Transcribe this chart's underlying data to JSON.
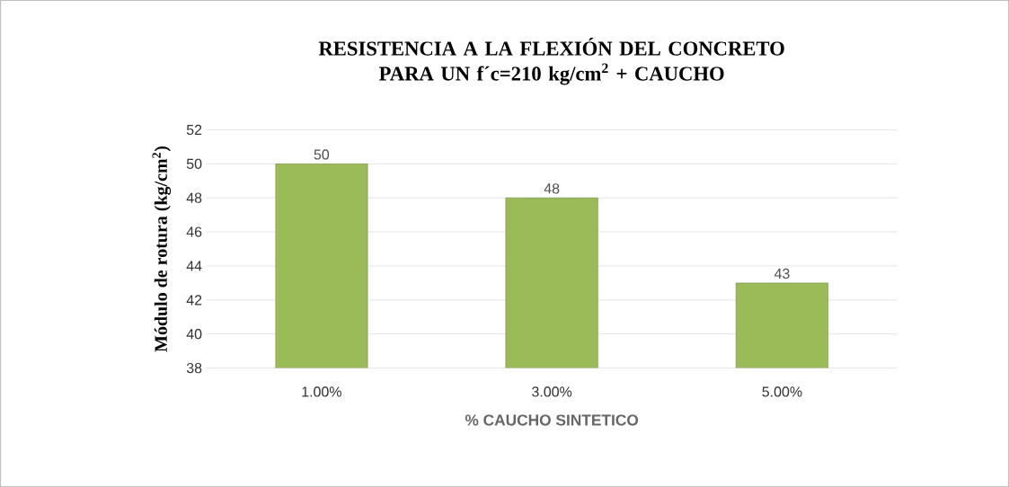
{
  "chart_data": {
    "type": "bar",
    "title": "RESISTENCIA A LA FLEXIÓN DEL CONCRETO  PARA UN f´c=210 kg/cm$^{2}$ + CAUCHO",
    "xlabel": "% CAUCHO SINTETICO",
    "ylabel": "Módulo de rotura  (kg/cm$^{2}$)",
    "categories": [
      "1.00%",
      "3.00%",
      "5.00%"
    ],
    "values": [
      50,
      48,
      43
    ],
    "color": "#9bbb59",
    "data_labels": true,
    "ylim": [
      38,
      52
    ],
    "yticks": [
      38,
      40,
      42,
      44,
      46,
      48,
      50,
      52
    ],
    "grid": "y"
  }
}
